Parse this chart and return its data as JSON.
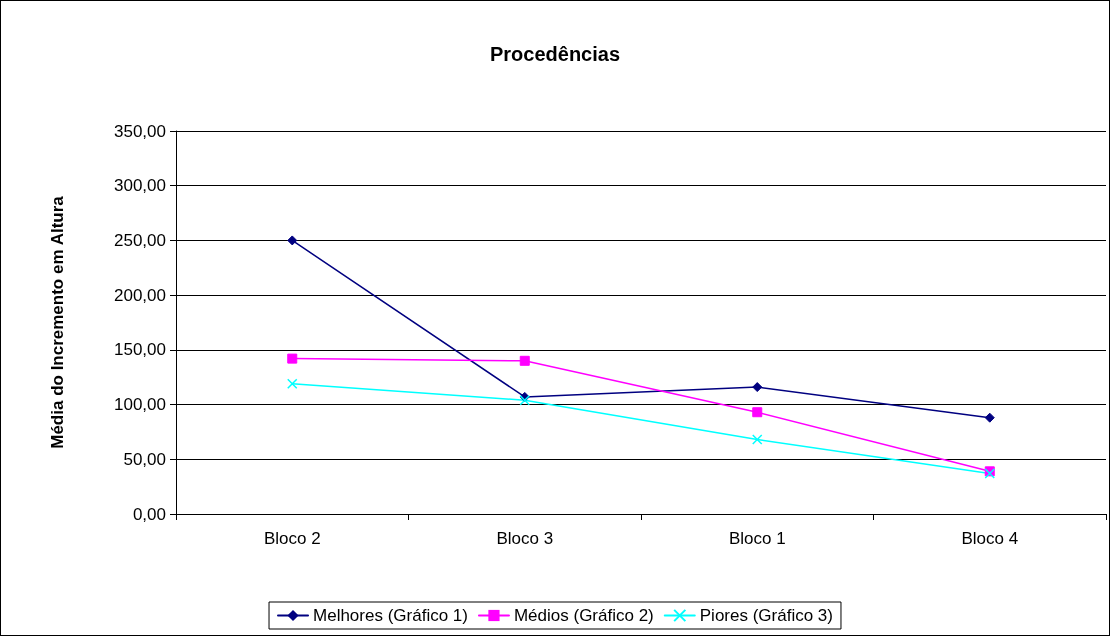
{
  "chart_data": {
    "type": "line",
    "title": "Procedências",
    "ylabel": "Média do Incremento em Altura",
    "categories": [
      "Bloco 2",
      "Bloco 3",
      "Bloco 1",
      "Bloco 4"
    ],
    "series": [
      {
        "name": "Melhores (Gráfico 1)",
        "color": "#000080",
        "marker": "diamond",
        "values": [
          250,
          107,
          116,
          88
        ]
      },
      {
        "name": "Médios (Gráfico 2)",
        "color": "#ff00ff",
        "marker": "square",
        "values": [
          142,
          140,
          93,
          39
        ]
      },
      {
        "name": "Piores (Gráfico 3)",
        "color": "#00ffff",
        "marker": "cross",
        "values": [
          119,
          104,
          68,
          37
        ]
      }
    ],
    "ylim": [
      0,
      350
    ],
    "yticks": [
      {
        "value": 0,
        "label": "0,00"
      },
      {
        "value": 50,
        "label": "50,00"
      },
      {
        "value": 100,
        "label": "100,00"
      },
      {
        "value": 150,
        "label": "150,00"
      },
      {
        "value": 200,
        "label": "200,00"
      },
      {
        "value": 250,
        "label": "250,00"
      },
      {
        "value": 300,
        "label": "300,00"
      },
      {
        "value": 350,
        "label": "350,00"
      }
    ],
    "grid": "y",
    "legend": "bottom",
    "line_style": "solid"
  }
}
